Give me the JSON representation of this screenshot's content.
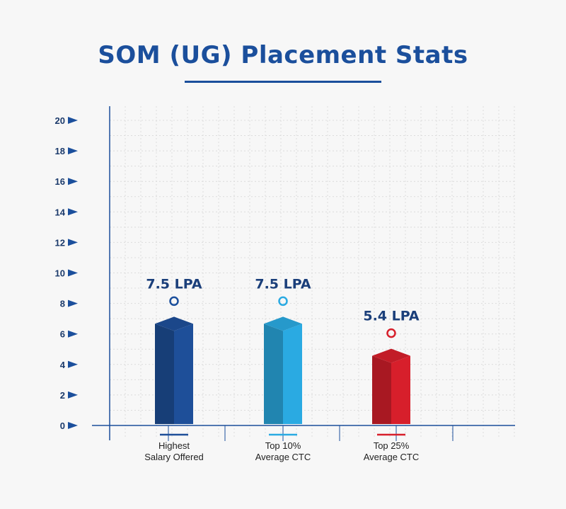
{
  "title": "SOM (UG) Placement Stats",
  "chart_data": {
    "type": "bar",
    "title": "SOM (UG) Placement Stats",
    "categories": [
      "Highest\nSalary Offered",
      "Top 10%\nAverage CTC",
      "Top 25%\nAverage CTC"
    ],
    "values": [
      7.5,
      7.5,
      5.4
    ],
    "value_labels": [
      "7.5 LPA",
      "7.5 LPA",
      "5.4 LPA"
    ],
    "bar_colors": [
      "#1e4f99",
      "#2aaae2",
      "#d71f2b"
    ],
    "yticks": [
      0,
      2,
      4,
      6,
      8,
      10,
      12,
      14,
      16,
      18,
      20
    ],
    "ylim": [
      0,
      20
    ],
    "xlabel": "",
    "ylabel": "",
    "grid": true
  }
}
